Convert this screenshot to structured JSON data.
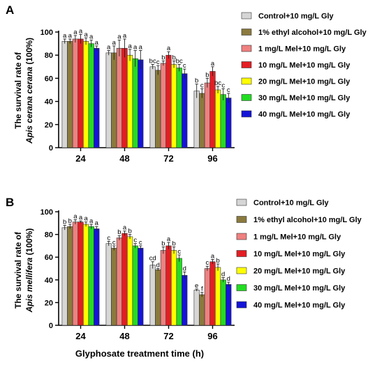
{
  "figure": {
    "xlabel": "Glyphosate treatment time (h)"
  },
  "chart_data": [
    {
      "type": "bar",
      "panel": "A",
      "ylabel_line1": "The survival rate of",
      "ylabel_line2": "Apis cerana cerana",
      "ylabel_suffix": " (100%)",
      "ylim": [
        0,
        100
      ],
      "yticks": [
        0,
        20,
        40,
        60,
        80,
        100
      ],
      "categories": [
        "24",
        "48",
        "72",
        "96"
      ],
      "legend_position": "right",
      "series": [
        {
          "name": "Control+10 mg/L Gly",
          "color": "#d6d6d6",
          "values": [
            92,
            82,
            70,
            49
          ],
          "errors": [
            2,
            2,
            2,
            6
          ],
          "letters": [
            "a",
            "a",
            "bc",
            "b"
          ]
        },
        {
          "name": "1% ethyl alcohol+10 mg/L Gly",
          "color": "#8b7a3e",
          "values": [
            92,
            82,
            67,
            47
          ],
          "errors": [
            2,
            6,
            4,
            4
          ],
          "letters": [
            "a",
            "a",
            "c",
            "c"
          ]
        },
        {
          "name": "1 mg/L Mel+10 mg/L Gly",
          "color": "#f08080",
          "values": [
            94,
            86,
            73,
            56
          ],
          "errors": [
            3,
            7,
            2,
            4
          ],
          "letters": [
            "a",
            "a",
            "b",
            "b"
          ]
        },
        {
          "name": "10 mg/L Mel+10 mg/L Gly",
          "color": "#e31e24",
          "values": [
            94,
            86,
            80,
            66
          ],
          "errors": [
            4,
            8,
            3,
            4
          ],
          "letters": [
            "a",
            "a",
            "a",
            "a"
          ]
        },
        {
          "name": "20 mg/L Mel+10 mg/L Gly",
          "color": "#ffff00",
          "values": [
            92,
            80,
            72,
            50
          ],
          "errors": [
            3,
            5,
            3,
            3
          ],
          "letters": [
            "a",
            "a",
            "b",
            "bc"
          ]
        },
        {
          "name": "30 mg/L Mel+10 mg/L Gly",
          "color": "#22dd22",
          "values": [
            90,
            77,
            69,
            46
          ],
          "errors": [
            3,
            7,
            3,
            5
          ],
          "letters": [
            "a",
            "a",
            "bc",
            "c"
          ]
        },
        {
          "name": "40 mg/L Mel+10 mg/L Gly",
          "color": "#1414d8",
          "values": [
            86,
            76,
            64,
            43
          ],
          "errors": [
            2,
            8,
            4,
            4
          ],
          "letters": [
            "a",
            "a",
            "c",
            "c"
          ]
        }
      ]
    },
    {
      "type": "bar",
      "panel": "B",
      "ylabel_line1": "The survival rate of",
      "ylabel_line2": "Apis mellifera",
      "ylabel_suffix": " (100%)",
      "ylim": [
        0,
        100
      ],
      "yticks": [
        0,
        20,
        40,
        60,
        80,
        100
      ],
      "categories": [
        "24",
        "48",
        "72",
        "96"
      ],
      "legend_position": "right",
      "series": [
        {
          "name": "Control+10 mg/L Gly",
          "color": "#d6d6d6",
          "values": [
            86,
            72,
            53,
            31
          ],
          "errors": [
            2,
            2,
            3,
            1
          ],
          "letters": [
            "b",
            "c",
            "cd",
            "e"
          ]
        },
        {
          "name": "1% ethyl alcohol+10 mg/L Gly",
          "color": "#8b7a3e",
          "values": [
            87,
            68,
            49,
            27
          ],
          "errors": [
            2,
            2,
            1,
            2
          ],
          "letters": [
            "b",
            "c",
            "d",
            "f"
          ]
        },
        {
          "name": "1 mg/L Mel+10 mg/L Gly",
          "color": "#f08080",
          "values": [
            91,
            77,
            66,
            50
          ],
          "errors": [
            2,
            2,
            3,
            2
          ],
          "letters": [
            "a",
            "b",
            "b",
            "c"
          ]
        },
        {
          "name": "10 mg/L Mel+10 mg/L Gly",
          "color": "#e31e24",
          "values": [
            91,
            81,
            70,
            56
          ],
          "errors": [
            1,
            2,
            3,
            2
          ],
          "letters": [
            "a",
            "a",
            "a",
            "a"
          ]
        },
        {
          "name": "20 mg/L Mel+10 mg/L Gly",
          "color": "#ffff00",
          "values": [
            89,
            78,
            66,
            51
          ],
          "errors": [
            2,
            2,
            3,
            3
          ],
          "letters": [
            "a",
            "b",
            "b",
            "b"
          ]
        },
        {
          "name": "30 mg/L Mel+10 mg/L Gly",
          "color": "#22dd22",
          "values": [
            87,
            70,
            59,
            40
          ],
          "errors": [
            2,
            2,
            3,
            2
          ],
          "letters": [
            "a",
            "c",
            "c",
            "d"
          ]
        },
        {
          "name": "40 mg/L Mel+10 mg/L Gly",
          "color": "#1414d8",
          "values": [
            85,
            68,
            44,
            36
          ],
          "errors": [
            2,
            2,
            3,
            2
          ],
          "letters": [
            "a",
            "c",
            "d",
            "d"
          ]
        }
      ]
    }
  ]
}
